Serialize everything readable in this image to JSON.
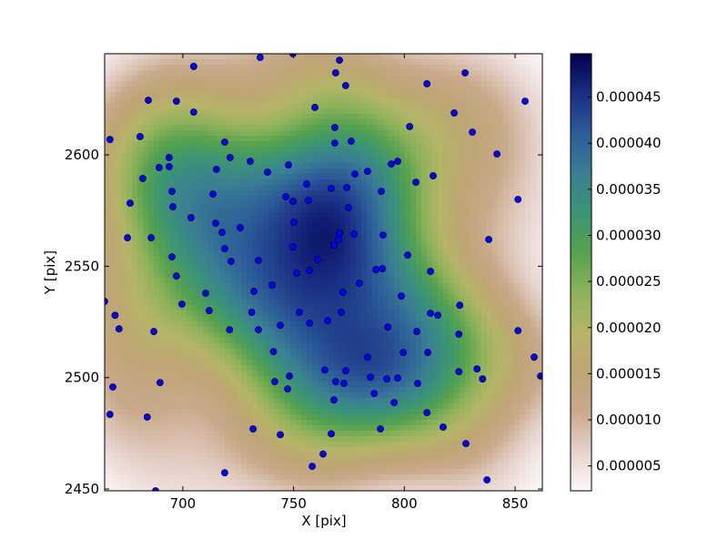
{
  "chart_data": {
    "type": "scatter",
    "xlabel": "X [pix]",
    "ylabel": "Y [pix]",
    "color": "#0000ff",
    "density_background": true,
    "x": [
      704.9,
      734.9,
      749.7,
      770.7,
      769.0,
      773.5,
      810.2,
      827.4,
      684.4,
      697.1,
      704.9,
      759.6,
      822.5,
      854.5,
      667.1,
      680.7,
      718.9,
      768.6,
      768.6,
      776.0,
      802.4,
      830.7,
      841.8,
      693.8,
      693.8,
      689.3,
      681.9,
      721.3,
      715.2,
      730.4,
      738.2,
      747.7,
      777.7,
      783.4,
      797.0,
      794.1,
      813.0,
      805.2,
      755.9,
      767.0,
      774.0,
      789.6,
      695.1,
      713.6,
      746.5,
      749.7,
      756.7,
      774.8,
      851.3,
      676.2,
      695.5,
      703.7,
      714.8,
      725.9,
      750.1,
      717.7,
      770.7,
      777.3,
      770.3,
      790.4,
      675.0,
      685.7,
      838.1,
      768.2,
      749.7,
      718.9,
      695.1,
      721.8,
      734.1,
      760.8,
      801.5,
      751.4,
      757.2,
      787.2,
      790.1,
      811.8,
      697.1,
      740.3,
      779.7,
      772.3,
      710.3,
      732.1,
      798.6,
      699.6,
      664.7,
      825.0,
      711.9,
      669.4,
      731.1,
      752.6,
      771.5,
      811.8,
      815.1,
      765.4,
      757.2,
      671.2,
      721.1,
      734.1,
      744.0,
      792.5,
      805.6,
      851.3,
      686.9,
      824.6,
      740.9,
      799.5,
      810.6,
      783.4,
      858.6,
      764.1,
      773.5,
      824.6,
      832.8,
      861.5,
      748.1,
      784.7,
      792.1,
      797.0,
      835.3,
      741.5,
      769.0,
      772.7,
      689.7,
      806.0,
      668.4,
      747.3,
      786.4,
      768.2,
      795.4,
      667.1,
      810.2,
      683.9,
      731.7,
      789.2,
      817.5,
      744.0,
      767.0,
      827.8,
      763.3,
      758.4,
      718.9,
      837.3,
      687.7
    ],
    "values": [
      2639.7,
      2643.7,
      2645.4,
      2642.5,
      2636.8,
      2631.1,
      2631.9,
      2636.8,
      2624.5,
      2624.1,
      2619.2,
      2621.3,
      2618.8,
      2624.1,
      2606.9,
      2608.2,
      2605.7,
      2612.3,
      2605.3,
      2606.1,
      2612.7,
      2610.2,
      2600.4,
      2598.8,
      2594.7,
      2594.3,
      2589.4,
      2598.8,
      2593.5,
      2597.1,
      2592.2,
      2595.5,
      2591.4,
      2592.6,
      2597.1,
      2595.9,
      2590.6,
      2587.7,
      2586.9,
      2584.9,
      2585.3,
      2583.6,
      2583.6,
      2582.4,
      2581.2,
      2579.1,
      2579.6,
      2576.3,
      2580.0,
      2578.3,
      2576.7,
      2571.8,
      2569.3,
      2567.3,
      2569.7,
      2565.2,
      2564.8,
      2564.4,
      2562.0,
      2564.0,
      2562.8,
      2562.8,
      2562.0,
      2559.5,
      2558.7,
      2557.9,
      2554.2,
      2552.2,
      2552.6,
      2553.0,
      2555.0,
      2546.9,
      2548.1,
      2548.5,
      2548.9,
      2547.7,
      2545.6,
      2541.5,
      2542.4,
      2538.3,
      2537.9,
      2538.7,
      2536.6,
      2533.0,
      2534.2,
      2532.5,
      2530.1,
      2528.0,
      2529.3,
      2529.3,
      2529.3,
      2528.9,
      2528.0,
      2525.6,
      2524.4,
      2521.9,
      2521.5,
      2521.5,
      2523.5,
      2522.7,
      2520.7,
      2521.1,
      2520.7,
      2519.5,
      2511.7,
      2511.3,
      2511.3,
      2509.2,
      2509.2,
      2503.4,
      2503.1,
      2502.7,
      2503.9,
      2500.7,
      2500.7,
      2500.2,
      2499.4,
      2499.8,
      2499.4,
      2498.2,
      2498.2,
      2497.4,
      2497.8,
      2497.4,
      2495.8,
      2494.9,
      2492.9,
      2490.0,
      2488.8,
      2483.5,
      2484.3,
      2482.3,
      2477.0,
      2477.0,
      2477.8,
      2474.4,
      2474.8,
      2470.4,
      2465.7,
      2460.2,
      2457.3,
      2454.1,
      2449.2
    ],
    "xlim": [
      664.7,
      862.3
    ],
    "ylim": [
      2449.2,
      2645.4
    ],
    "xticks": [
      700,
      750,
      800,
      850
    ],
    "yticks": [
      2450,
      2500,
      2550,
      2600
    ],
    "colorbar": {
      "clim": [
        2.3e-06,
        4.97e-05
      ],
      "ticks": [
        5e-06,
        {
          "value": 1e-05,
          "label": "0.000010"
        },
        1.5e-05,
        {
          "value": 2e-05,
          "label": "0.000020"
        },
        2.5e-05,
        {
          "value": 3e-05,
          "label": "0.000030"
        },
        3.5e-05,
        {
          "value": 4e-05,
          "label": "0.000040"
        },
        4.5e-05
      ],
      "colormap": [
        "#fdf9f9",
        "#e6d2cc",
        "#c9a98a",
        "#bda574",
        "#b5b567",
        "#8db25a",
        "#55a24e",
        "#3b9573",
        "#3a7f93",
        "#2c5c98",
        "#1a2e84",
        "#00004c"
      ]
    }
  }
}
